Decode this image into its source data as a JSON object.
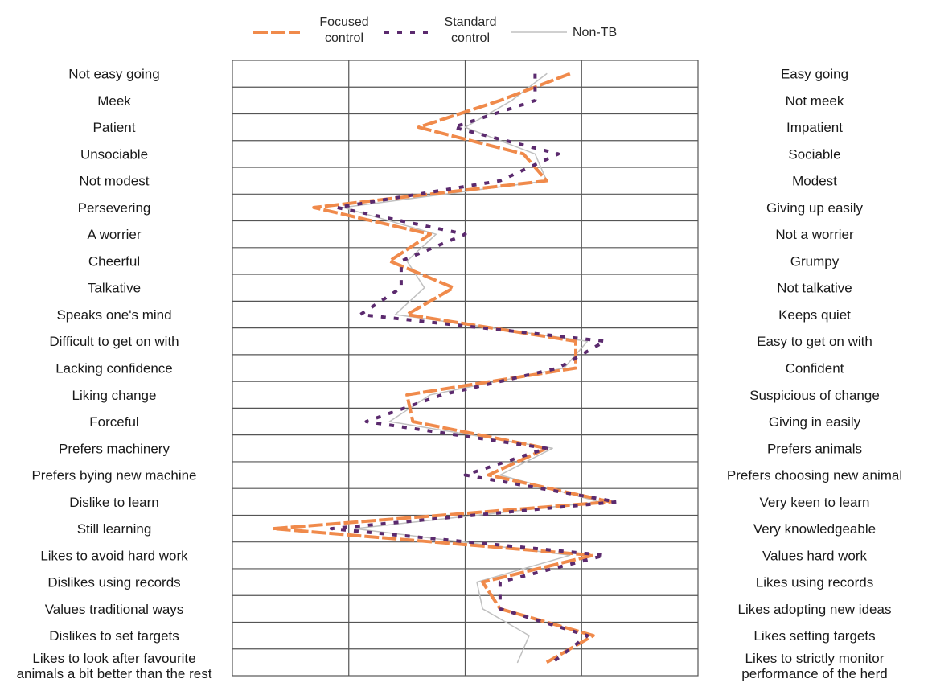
{
  "chart_data": {
    "type": "line",
    "orientation": "vertical-profile",
    "xlim": [
      0,
      4
    ],
    "grid": true,
    "legend_position": "top",
    "legend": [
      {
        "key": "focused",
        "lines": [
          "Focused",
          "control"
        ],
        "color": "#f08a4b",
        "style": "thick-dashed"
      },
      {
        "key": "standard",
        "lines": [
          "Standard",
          "control"
        ],
        "color": "#5b2a6e",
        "style": "dotted"
      },
      {
        "key": "nontb",
        "label": "Non-TB",
        "color": "#c0c0c0",
        "style": "thin-solid"
      }
    ],
    "left_labels": [
      [
        "Not easy going"
      ],
      [
        "Meek"
      ],
      [
        "Patient"
      ],
      [
        "Unsociable"
      ],
      [
        "Not modest"
      ],
      [
        "Persevering"
      ],
      [
        "A worrier"
      ],
      [
        "Cheerful"
      ],
      [
        "Talkative"
      ],
      [
        "Speaks one's mind"
      ],
      [
        "Difficult to get on with"
      ],
      [
        "Lacking confidence"
      ],
      [
        "Liking change"
      ],
      [
        "Forceful"
      ],
      [
        "Prefers machinery"
      ],
      [
        "Prefers bying new machine"
      ],
      [
        "Dislike to learn"
      ],
      [
        "Still learning"
      ],
      [
        "Likes to avoid hard work"
      ],
      [
        "Dislikes using records"
      ],
      [
        "Values traditional ways"
      ],
      [
        "Dislikes to set targets"
      ],
      [
        "Likes to look after favourite",
        "animals a bit better than the rest"
      ]
    ],
    "right_labels": [
      [
        "Easy going"
      ],
      [
        "Not meek"
      ],
      [
        "Impatient"
      ],
      [
        "Sociable"
      ],
      [
        "Modest"
      ],
      [
        "Giving up easily"
      ],
      [
        "Not a worrier"
      ],
      [
        "Grumpy"
      ],
      [
        "Not talkative"
      ],
      [
        "Keeps quiet"
      ],
      [
        "Easy to get on with"
      ],
      [
        "Confident"
      ],
      [
        "Suspicious of change"
      ],
      [
        "Giving in easily"
      ],
      [
        "Prefers animals"
      ],
      [
        "Prefers choosing new animal"
      ],
      [
        "Very keen to learn"
      ],
      [
        "Very knowledgeable"
      ],
      [
        "Values hard work"
      ],
      [
        "Likes using records"
      ],
      [
        "Likes adopting new ideas"
      ],
      [
        "Likes setting targets"
      ],
      [
        "Likes to strictly monitor",
        "performance of the herd"
      ]
    ],
    "series": [
      {
        "key": "focused",
        "values": [
          2.9,
          2.3,
          1.6,
          2.5,
          2.7,
          0.7,
          1.7,
          1.35,
          1.9,
          1.5,
          2.95,
          2.95,
          1.5,
          1.55,
          2.7,
          2.2,
          3.25,
          0.35,
          3.1,
          2.15,
          2.3,
          3.1,
          2.7
        ]
      },
      {
        "key": "standard",
        "values": [
          2.6,
          2.6,
          1.9,
          2.8,
          2.3,
          0.9,
          2.0,
          1.45,
          1.45,
          1.1,
          3.2,
          2.8,
          1.8,
          1.15,
          2.7,
          2.0,
          3.3,
          0.85,
          3.2,
          2.3,
          2.3,
          3.05,
          2.75
        ]
      },
      {
        "key": "nontb",
        "values": [
          2.7,
          2.4,
          2.0,
          2.6,
          2.7,
          0.95,
          1.75,
          1.5,
          1.65,
          1.4,
          3.05,
          2.85,
          1.7,
          1.35,
          2.75,
          2.3,
          3.15,
          1.05,
          2.9,
          2.1,
          2.15,
          2.55,
          2.45
        ]
      }
    ]
  }
}
